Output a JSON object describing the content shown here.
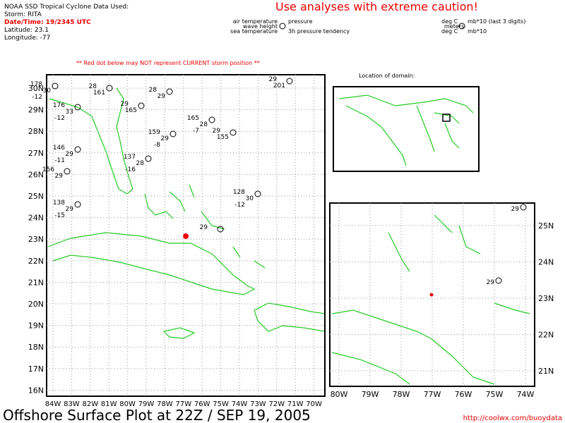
{
  "header": {
    "source": "NOAA SSD Tropical Cyclone Data Used:",
    "storm": "Storm: RITA",
    "datetime": "Date/Time: 19/2345 UTC",
    "latitude": "Latitude: 23.1",
    "longitude": "Longitude: -77"
  },
  "caution": "Use analyses with extreme caution!",
  "legend": {
    "air_temperature": "air temperature",
    "pressure": "pressure",
    "wave_height": "wave height",
    "sea_temperature": "sea temperature",
    "tendency": "3h pressure tendency",
    "air_unit": "deg C",
    "pressure_unit": "mb*10 (last 3 digits)",
    "wave_unit": "meters",
    "sea_unit": "deg C",
    "tendency_unit": "mb*10"
  },
  "warning": "** Red dot below may NOT represent CURRENT storm position **",
  "location_label": "Location of domain:",
  "main_map": {
    "lat_labels": [
      "30N",
      "29N",
      "28N",
      "27N",
      "26N",
      "25N",
      "24N",
      "23N",
      "22N",
      "21N",
      "20N",
      "19N",
      "18N",
      "17N",
      "16N"
    ],
    "lon_labels": [
      "84W",
      "83W",
      "82W",
      "81W",
      "80W",
      "79W",
      "78W",
      "77W",
      "76W",
      "75W",
      "74W",
      "73W",
      "72W",
      "71W",
      "70W"
    ],
    "stations": [
      [
        "178",
        "30",
        "-12"
      ],
      [
        "28",
        "161"
      ],
      [
        "176",
        "33",
        "-12"
      ],
      [
        "29",
        "165"
      ],
      [
        "165",
        "28",
        "-7"
      ],
      [
        "159",
        "29",
        "-8"
      ],
      [
        "146",
        "29",
        "-11"
      ],
      [
        "137",
        "28",
        "-16"
      ],
      [
        "156",
        "29"
      ],
      [
        "138",
        "29",
        "-15"
      ],
      [
        "28",
        "29"
      ],
      [
        "128",
        "30",
        "-12"
      ],
      [
        "29",
        "201"
      ],
      [
        "29"
      ],
      [
        "29",
        "155"
      ]
    ]
  },
  "inset_map": {
    "lat_labels": [
      "25N",
      "24N",
      "23N",
      "22N",
      "21N"
    ],
    "lon_labels": [
      "80W",
      "79W",
      "78W",
      "77W",
      "76W",
      "75W",
      "74W"
    ],
    "stations": [
      [
        "29"
      ],
      [
        "29"
      ]
    ]
  },
  "footer": {
    "title": "Offshore Surface Plot at 22Z / SEP 19, 2005",
    "url": "http://coolwx.com/buoydata"
  }
}
